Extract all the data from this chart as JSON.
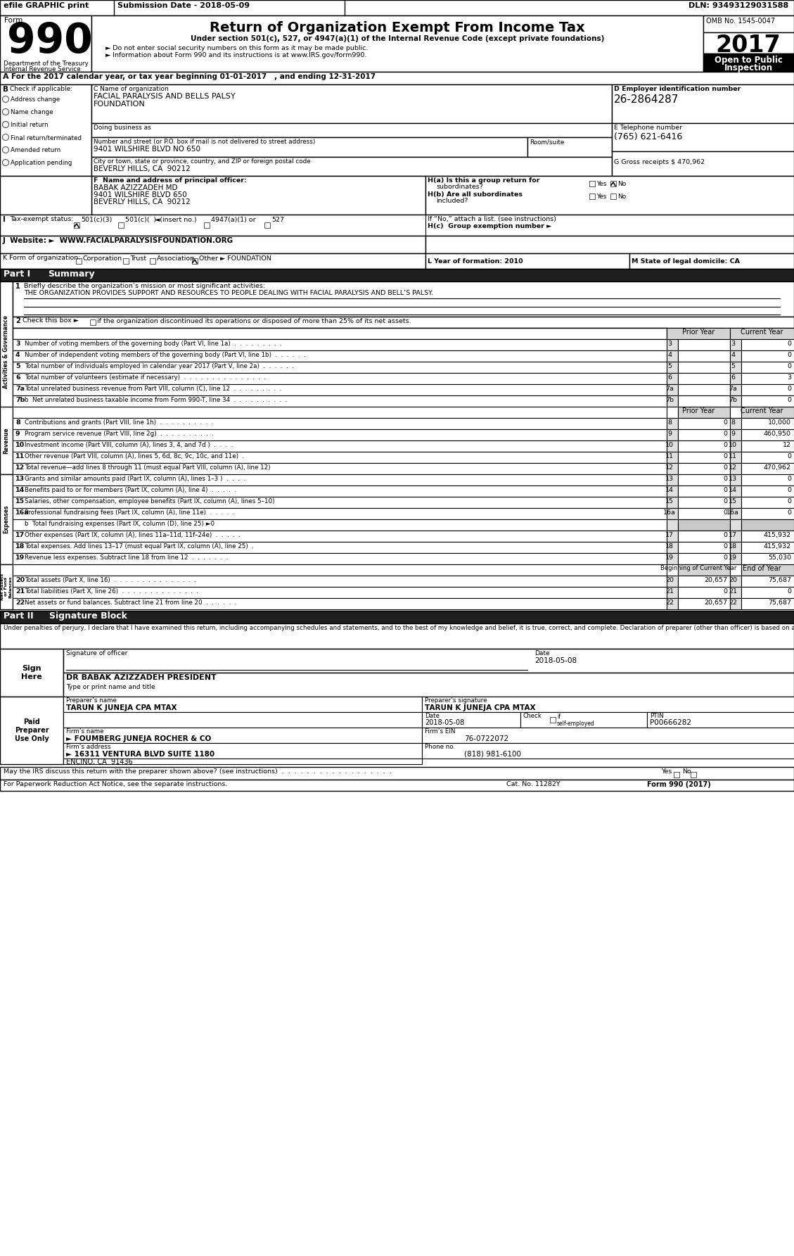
{
  "bg_color": "#ffffff",
  "header": {
    "efile_text": "efile GRAPHIC print",
    "submission_date": "Submission Date - 2018-05-09",
    "dln": "DLN: 93493129031588",
    "form_number": "990",
    "form_label": "Form",
    "title": "Return of Organization Exempt From Income Tax",
    "subtitle1": "Under section 501(c), 527, or 4947(a)(1) of the Internal Revenue Code (except private foundations)",
    "bullet1": "Do not enter social security numbers on this form as it may be made public.",
    "bullet2": "Information about Form 990 and its instructions is at www.IRS.gov/form990.",
    "dept1": "Department of the Treasury",
    "dept2": "Internal Revenue Service",
    "omb": "OMB No. 1545-0047",
    "year": "2017",
    "open_text": "Open to Public",
    "inspection_text": "Inspection"
  },
  "section_a_text": "For the 2017 calendar year, or tax year beginning 01-01-2017   , and ending 12-31-2017",
  "section_b_options": [
    "Address change",
    "Name change",
    "Initial return",
    "Final return/terminated",
    "Amended return",
    "Application pending"
  ],
  "section_c": {
    "name_label": "C Name of organization",
    "name": "FACIAL PARALYSIS AND BELLS PALSY",
    "name2": "FOUNDATION",
    "dba_label": "Doing business as",
    "addr_label": "Number and street (or P.O. box if mail is not delivered to street address)",
    "room_label": "Room/suite",
    "addr": "9401 WILSHIRE BLVD NO 650",
    "city_label": "City or town, state or province, country, and ZIP or foreign postal code",
    "city": "BEVERLY HILLS, CA  90212"
  },
  "section_d": {
    "text": "D Employer identification number",
    "ein": "26-2864287"
  },
  "section_e": {
    "text": "E Telephone number",
    "phone": "(765) 621-6416"
  },
  "section_g": "G Gross receipts $ 470,962",
  "section_f": {
    "label": "F  Name and address of principal officer:",
    "name": "BABAK AZIZZADEH MD",
    "addr1": "9401 WILSHIRE BLVD 650",
    "addr2": "BEVERLY HILLS, CA  90212"
  },
  "section_h": {
    "ha_line1": "H(a) Is this a group return for",
    "ha_line2": "subordinates?",
    "hb_line1": "H(b) Are all subordinates",
    "hb_line2": "included?",
    "hc_line1": "If “No,” attach a list. (see instructions)",
    "hc_line2": "H(c)  Group exemption number ►"
  },
  "section_i_text": "I   Tax-exempt status:",
  "section_j_text": "J  Website: ►  WWW.FACIALPARALYSISFOUNDATION.ORG",
  "section_k_text": "K Form of organization:",
  "section_l_text": "L Year of formation: 2010",
  "section_m_text": "M State of legal domicile: CA",
  "part1_mission": "THE ORGANIZATION PROVIDES SUPPORT AND RESOURCES TO PEOPLE DEALING WITH FACIAL PARALYSIS AND BELL’S PALSY.",
  "part1_lines_gov": [
    {
      "num": "3",
      "text": "Number of voting members of the governing body (Part VI, line 1a)  .  .  .  .  .  .  .  .  .",
      "val": "0"
    },
    {
      "num": "4",
      "text": "Number of independent voting members of the governing body (Part VI, line 1b)  .  .  .  .  .  .",
      "val": "0"
    },
    {
      "num": "5",
      "text": "Total number of individuals employed in calendar year 2017 (Part V, line 2a)  .  .  .  .  .  .",
      "val": "0"
    },
    {
      "num": "6",
      "text": "Total number of volunteers (estimate if necessary)  .  .  .  .  .  .  .  .  .  .  .  .  .  .  .",
      "val": "3"
    },
    {
      "num": "7a",
      "text": "Total unrelated business revenue from Part VIII, column (C), line 12  .  .  .  .  .  .  .  .  .",
      "val": "0"
    },
    {
      "num": "7b",
      "text": "b  Net unrelated business taxable income from Form 990-T, line 34  .  .  .  .  .  .  .  .  .  .",
      "val": "0"
    }
  ],
  "part1_revenue": [
    {
      "num": "8",
      "text": "Contributions and grants (Part VIII, line 1h)  .  .  .  .  .  .  .  .  .  .",
      "prior": "0",
      "curr": "10,000"
    },
    {
      "num": "9",
      "text": "Program service revenue (Part VIII, line 2g)  .  .  .  .  .  .  .  .  .  .",
      "prior": "0",
      "curr": "460,950"
    },
    {
      "num": "10",
      "text": "Investment income (Part VIII, column (A), lines 3, 4, and 7d )  .  .  .  .",
      "prior": "0",
      "curr": "12"
    },
    {
      "num": "11",
      "text": "Other revenue (Part VIII, column (A), lines 5, 6d, 8c, 9c, 10c, and 11e)  .",
      "prior": "0",
      "curr": "0"
    },
    {
      "num": "12",
      "text": "Total revenue—add lines 8 through 11 (must equal Part VIII, column (A), line 12)",
      "prior": "0",
      "curr": "470,962"
    }
  ],
  "part1_expenses": [
    {
      "num": "13",
      "text": "Grants and similar amounts paid (Part IX, column (A), lines 1–3 )  .  .  .  .",
      "prior": "0",
      "curr": "0"
    },
    {
      "num": "14",
      "text": "Benefits paid to or for members (Part IX, column (A), line 4)  .  .  .  .  .",
      "prior": "0",
      "curr": "0"
    },
    {
      "num": "15",
      "text": "Salaries, other compensation, employee benefits (Part IX, column (A), lines 5–10)",
      "prior": "0",
      "curr": "0"
    },
    {
      "num": "16a",
      "text": "Professional fundraising fees (Part IX, column (A), line 11e)  .  .  .  .  .",
      "prior": "0",
      "curr": "0"
    },
    {
      "num": "16b",
      "text": "b  Total fundraising expenses (Part IX, column (D), line 25) ►0",
      "prior": "",
      "curr": "",
      "gray": true
    },
    {
      "num": "17",
      "text": "Other expenses (Part IX, column (A), lines 11a–11d, 11f–24e)  .  .  .  .  .",
      "prior": "0",
      "curr": "415,932"
    },
    {
      "num": "18",
      "text": "Total expenses. Add lines 13–17 (must equal Part IX, column (A), line 25)  .",
      "prior": "0",
      "curr": "415,932"
    },
    {
      "num": "19",
      "text": "Revenue less expenses. Subtract line 18 from line 12  .  .  .  .  .  .  .",
      "prior": "0",
      "curr": "55,030"
    }
  ],
  "part1_balance": [
    {
      "num": "20",
      "text": "Total assets (Part X, line 16)  .  .  .  .  .  .  .  .  .  .  .  .  .  .  .",
      "prior": "20,657",
      "curr": "75,687"
    },
    {
      "num": "21",
      "text": "Total liabilities (Part X, line 26)  .  .  .  .  .  .  .  .  .  .  .  .  .  .",
      "prior": "0",
      "curr": "0"
    },
    {
      "num": "22",
      "text": "Net assets or fund balances. Subtract line 21 from line 20  .  .  .  .  .  .",
      "prior": "20,657",
      "curr": "75,687"
    }
  ],
  "part2_text": "Under penalties of perjury, I declare that I have examined this return, including accompanying schedules and statements, and to the best of my knowledge and belief, it is true, correct, and complete. Declaration of preparer (other than officer) is based on all information of which preparer has any knowledge.",
  "sig_date": "2018-05-08",
  "officer_name": "DR BABAK AZIZZADEH PRESIDENT",
  "prep_name": "TARUN K JUNEJA CPA MTAX",
  "prep_sig": "TARUN K JUNEJA CPA MTAX",
  "prep_date": "2018-05-08",
  "ptin": "P00666282",
  "firm_name": "► FOUMBERG JUNEJA ROCHER & CO",
  "firm_ein": "76-0722072",
  "firm_addr": "► 16311 VENTURA BLVD SUITE 1180",
  "firm_city": "ENCINO, CA  91436",
  "firm_phone": "(818) 981-6100",
  "footer_irs": "May the IRS discuss this return with the preparer shown above? (see instructions)  .  .  .  .  .  .  .  .  .  .  .  .  .  .  .  .  .  .",
  "cat_no": "Cat. No. 11282Y",
  "form_footer": "Form 990 (2017)"
}
